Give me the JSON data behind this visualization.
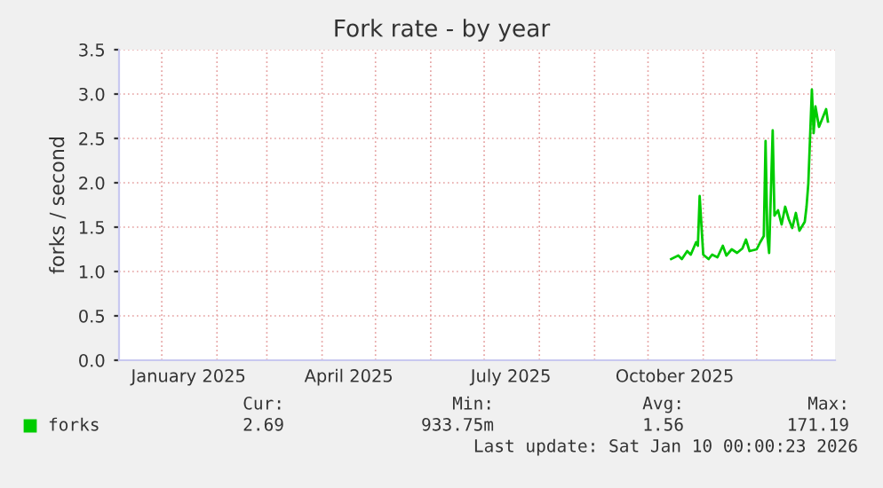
{
  "chart_data": {
    "type": "line",
    "title": "Fork rate - by year",
    "ylabel": "forks / second",
    "x": [
      "2025-10-14",
      "2025-10-18",
      "2025-10-20",
      "2025-10-23",
      "2025-10-25",
      "2025-10-28",
      "2025-10-29",
      "2025-10-30",
      "2025-11-01",
      "2025-11-04",
      "2025-11-06",
      "2025-11-09",
      "2025-11-12",
      "2025-11-14",
      "2025-11-17",
      "2025-11-20",
      "2025-11-23",
      "2025-11-25",
      "2025-11-27",
      "2025-12-01",
      "2025-12-03",
      "2025-12-05",
      "2025-12-06",
      "2025-12-07",
      "2025-12-08",
      "2025-12-10",
      "2025-12-11",
      "2025-12-13",
      "2025-12-15",
      "2025-12-17",
      "2025-12-19",
      "2025-12-21",
      "2025-12-23",
      "2025-12-25",
      "2025-12-28",
      "2025-12-29",
      "2025-12-30",
      "2026-01-01",
      "2026-01-02",
      "2026-01-03",
      "2026-01-05",
      "2026-01-07",
      "2026-01-09",
      "2026-01-10"
    ],
    "series": [
      {
        "name": "forks",
        "color": "#00cc00",
        "values": [
          1.14,
          1.18,
          1.14,
          1.23,
          1.19,
          1.33,
          1.29,
          1.85,
          1.19,
          1.14,
          1.19,
          1.16,
          1.29,
          1.18,
          1.25,
          1.21,
          1.26,
          1.36,
          1.23,
          1.25,
          1.33,
          1.4,
          2.47,
          1.4,
          1.21,
          2.59,
          1.63,
          1.69,
          1.53,
          1.73,
          1.59,
          1.49,
          1.66,
          1.46,
          1.56,
          1.73,
          1.99,
          3.05,
          2.56,
          2.86,
          2.63,
          2.73,
          2.83,
          2.69
        ]
      }
    ],
    "xlim": [
      "2024-12-08",
      "2026-01-14"
    ],
    "xticks": [
      {
        "value": "2025-01-01",
        "label": null
      },
      {
        "value": "2025-01-16",
        "label": "January 2025"
      },
      {
        "value": "2025-02-01",
        "label": null
      },
      {
        "value": "2025-03-01",
        "label": null
      },
      {
        "value": "2025-04-01",
        "label": null
      },
      {
        "value": "2025-04-16",
        "label": "April 2025"
      },
      {
        "value": "2025-05-01",
        "label": null
      },
      {
        "value": "2025-06-01",
        "label": null
      },
      {
        "value": "2025-07-01",
        "label": null
      },
      {
        "value": "2025-07-16",
        "label": "July 2025"
      },
      {
        "value": "2025-08-01",
        "label": null
      },
      {
        "value": "2025-09-01",
        "label": null
      },
      {
        "value": "2025-10-01",
        "label": null
      },
      {
        "value": "2025-10-16",
        "label": "October 2025"
      },
      {
        "value": "2025-11-01",
        "label": null
      },
      {
        "value": "2025-12-01",
        "label": null
      },
      {
        "value": "2026-01-01",
        "label": null
      }
    ],
    "ylim": [
      0,
      3.5
    ],
    "yticks": [
      {
        "value": 0,
        "label": "0.0"
      },
      {
        "value": 0.5,
        "label": "0.5"
      },
      {
        "value": 1,
        "label": "1.0"
      },
      {
        "value": 1.5,
        "label": "1.5"
      },
      {
        "value": 2,
        "label": "2.0"
      },
      {
        "value": 2.5,
        "label": "2.5"
      },
      {
        "value": 3,
        "label": "3.0"
      },
      {
        "value": 3.5,
        "label": "3.5"
      }
    ],
    "grid": true,
    "legend": "bottom left",
    "marker": "none",
    "line_style": "solid",
    "annotations": [
      "Cur:",
      "Min:",
      "Avg:",
      "Max:",
      "2.69",
      "933.75m",
      "1.56",
      "171.19",
      "Last update: Sat Jan 10 00:00:23 2026"
    ]
  }
}
